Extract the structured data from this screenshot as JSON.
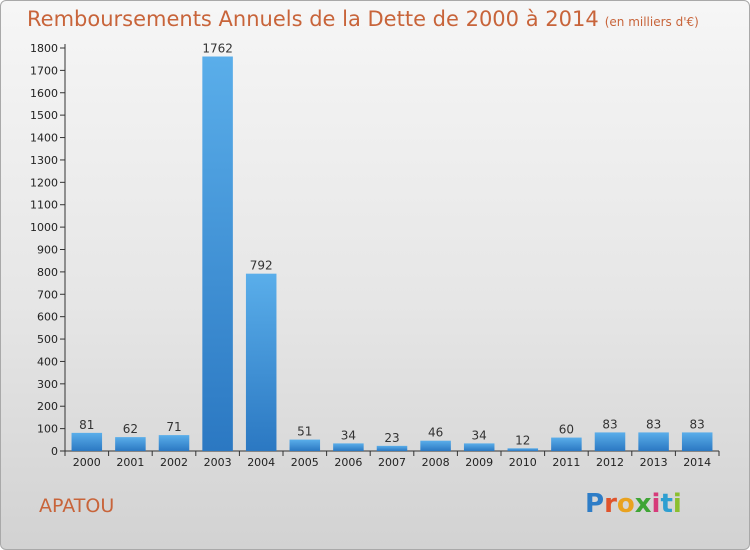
{
  "header": {
    "title": "Remboursements Annuels de la Dette de 2000 à 2014",
    "unit": "(en milliers d'€)"
  },
  "footer": {
    "commune": "APATOU",
    "brand_letters": [
      {
        "ch": "P",
        "color": "#2e7dc7"
      },
      {
        "ch": "r",
        "color": "#e0532b"
      },
      {
        "ch": "o",
        "color": "#e9a21f"
      },
      {
        "ch": "x",
        "color": "#3fa535"
      },
      {
        "ch": "i",
        "color": "#d63b7a"
      },
      {
        "ch": "t",
        "color": "#2e9fd1"
      },
      {
        "ch": "i",
        "color": "#8bbf2e"
      }
    ]
  },
  "chart_data": {
    "type": "bar",
    "title": "Remboursements Annuels de la Dette de 2000 à 2014",
    "xlabel": "",
    "ylabel": "",
    "categories": [
      "2000",
      "2001",
      "2002",
      "2003",
      "2004",
      "2005",
      "2006",
      "2007",
      "2008",
      "2009",
      "2010",
      "2011",
      "2012",
      "2013",
      "2014"
    ],
    "values": [
      81,
      62,
      71,
      1762,
      792,
      51,
      34,
      23,
      46,
      34,
      12,
      60,
      83,
      83,
      83
    ],
    "ylim": [
      0,
      1800
    ],
    "yticks": [
      0,
      100,
      200,
      300,
      400,
      500,
      600,
      700,
      800,
      900,
      1000,
      1100,
      1200,
      1300,
      1400,
      1500,
      1600,
      1700,
      1800
    ],
    "grid": false,
    "bar_color": "#3d8fd6"
  }
}
